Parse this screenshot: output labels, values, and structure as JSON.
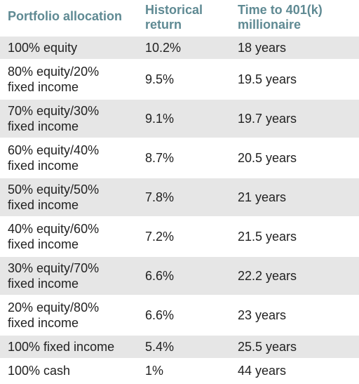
{
  "headers": {
    "allocation": "Portfolio allocation",
    "return": "Historical\nreturn",
    "time": "Time to 401(k)\nmillionaire"
  },
  "rows": [
    {
      "allocation": "100% equity",
      "return": "10.2%",
      "time": "18 years"
    },
    {
      "allocation": "80% equity/20%\nfixed income",
      "return": "9.5%",
      "time": "19.5 years"
    },
    {
      "allocation": "70% equity/30%\nfixed income",
      "return": "9.1%",
      "time": "19.7 years"
    },
    {
      "allocation": "60% equity/40%\nfixed income",
      "return": "8.7%",
      "time": "20.5 years"
    },
    {
      "allocation": "50% equity/50%\nfixed income",
      "return": "7.8%",
      "time": "21 years"
    },
    {
      "allocation": "40% equity/60%\nfixed income",
      "return": "7.2%",
      "time": "21.5 years"
    },
    {
      "allocation": "30% equity/70%\nfixed income",
      "return": "6.6%",
      "time": "22.2 years"
    },
    {
      "allocation": "20% equity/80%\nfixed income",
      "return": "6.6%",
      "time": "23 years"
    },
    {
      "allocation": "100% fixed income",
      "return": "5.4%",
      "time": "25.5 years"
    },
    {
      "allocation": "100% cash",
      "return": "1%",
      "time": "44 years"
    }
  ],
  "colors": {
    "header_text": "#5f8a93",
    "stripe": "#e6e6e6",
    "body_text": "#222222"
  }
}
